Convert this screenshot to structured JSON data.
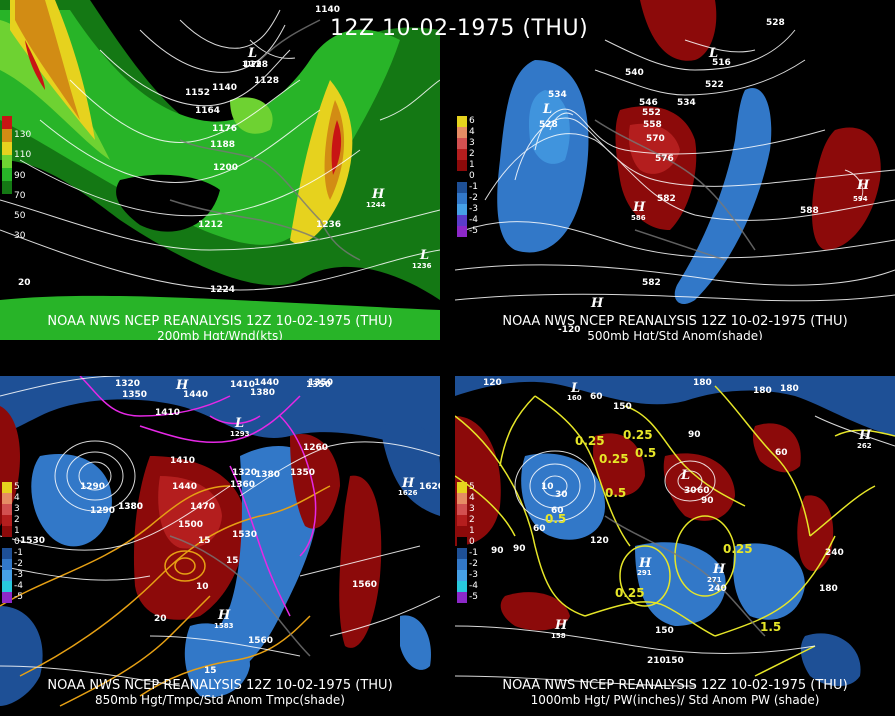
{
  "main_title": "12Z 10-02-1975 (THU)",
  "panels": [
    {
      "id": "p1",
      "caption_line1": "NOAA NWS NCEP REANALYSIS 12Z 10-02-1975 (THU)",
      "caption_line2": "200mb Hgt/Wnd(kts)",
      "legend": [
        {
          "label": "130",
          "color": "#c81414"
        },
        {
          "label": "110",
          "color": "#d28c14"
        },
        {
          "label": "90",
          "color": "#e6d21e"
        },
        {
          "label": "70",
          "color": "#6ed232"
        },
        {
          "label": "50",
          "color": "#28b428"
        },
        {
          "label": "30",
          "color": "#147814"
        }
      ],
      "contour_labels": [
        "1140",
        "1128",
        "1152",
        "1140",
        "1128",
        "1164",
        "1176",
        "1188",
        "1200",
        "1212",
        "1236",
        "1244",
        "1224",
        "1236",
        "20",
        "1176"
      ]
    },
    {
      "id": "p2",
      "caption_line1": "NOAA NWS NCEP REANALYSIS 12Z 10-02-1975 (THU)",
      "caption_line2": "500mb Hgt/Std Anom(shade)",
      "legend": [
        {
          "label": "6",
          "color": "#e6d21e"
        },
        {
          "label": "4",
          "color": "#e68c64"
        },
        {
          "label": "3",
          "color": "#d25050"
        },
        {
          "label": "2",
          "color": "#b41e1e"
        },
        {
          "label": "1",
          "color": "#8c0a0a"
        },
        {
          "label": "0",
          "color": "#000000"
        },
        {
          "label": "-1",
          "color": "#1e5096"
        },
        {
          "label": "-2",
          "color": "#3278c8"
        },
        {
          "label": "-3",
          "color": "#46a0e6"
        },
        {
          "label": "-4",
          "color": "#5a3cc8"
        },
        {
          "label": "-5",
          "color": "#8c28c8"
        }
      ],
      "contour_labels": [
        "534",
        "528",
        "540",
        "546",
        "552",
        "558",
        "570",
        "576",
        "582",
        "588",
        "534",
        "528",
        "522",
        "516",
        "582",
        "594",
        "586",
        "-120"
      ]
    },
    {
      "id": "p3",
      "caption_line1": "NOAA NWS NCEP REANALYSIS 12Z 10-02-1975 (THU)",
      "caption_line2": "850mb Hgt/Tmpc/Std Anom Tmpc(shade)",
      "legend": [
        {
          "label": "5",
          "color": "#e6d21e"
        },
        {
          "label": "4",
          "color": "#e68c64"
        },
        {
          "label": "3",
          "color": "#d25050"
        },
        {
          "label": "2",
          "color": "#b41e1e"
        },
        {
          "label": "1",
          "color": "#8c0a0a"
        },
        {
          "label": "0",
          "color": "#000000"
        },
        {
          "label": "-1",
          "color": "#1e5096"
        },
        {
          "label": "-2",
          "color": "#3278c8"
        },
        {
          "label": "-3",
          "color": "#46a0e6"
        },
        {
          "label": "-4",
          "color": "#28c8dc"
        },
        {
          "label": "-5",
          "color": "#8c28c8"
        }
      ],
      "contour_labels": [
        "1320",
        "1350",
        "1440",
        "1410",
        "1440",
        "1380",
        "1350",
        "1410",
        "1293",
        "1260",
        "1410",
        "1440",
        "1320",
        "1380",
        "1350",
        "1380",
        "1470",
        "1500",
        "1530",
        "1290",
        "1360",
        "1290",
        "1380",
        "1626",
        "1620",
        "1560",
        "1560",
        "1583",
        "15",
        "10",
        "15",
        "20",
        "15",
        "1530",
        "1350"
      ]
    },
    {
      "id": "p4",
      "caption_line1": "NOAA NWS NCEP REANALYSIS 12Z 10-02-1975 (THU)",
      "caption_line2": "1000mb Hgt/ PW(inches)/ Std Anom PW (shade)",
      "legend": [
        {
          "label": "5",
          "color": "#e6d21e"
        },
        {
          "label": "4",
          "color": "#e68c64"
        },
        {
          "label": "3",
          "color": "#d25050"
        },
        {
          "label": "2",
          "color": "#b41e1e"
        },
        {
          "label": "1",
          "color": "#8c0a0a"
        },
        {
          "label": "0",
          "color": "#000000"
        },
        {
          "label": "-1",
          "color": "#1e5096"
        },
        {
          "label": "-2",
          "color": "#3278c8"
        },
        {
          "label": "-3",
          "color": "#46a0e6"
        },
        {
          "label": "-4",
          "color": "#28c8dc"
        },
        {
          "label": "-5",
          "color": "#8c28c8"
        }
      ],
      "contour_labels": [
        "120",
        "160",
        "60",
        "150",
        "180",
        "90",
        "30",
        "60",
        "90",
        "240",
        "262",
        "60",
        "90",
        "120",
        "30",
        "60",
        "90",
        "291",
        "271",
        "240",
        "180",
        "150",
        "210",
        "150",
        "180",
        "180",
        "0.25",
        "0.25",
        "0.5",
        "0.25",
        "0.5",
        "0.5",
        "0.25",
        "0.25",
        "1.5",
        "158",
        "60",
        "10"
      ]
    }
  ],
  "colors": {
    "background": "#000000",
    "contour": "#ffffff",
    "land": "#787878",
    "temp_contour": "#e6a014",
    "cold_contour": "#e628e6",
    "pw_contour": "#e6e628"
  }
}
